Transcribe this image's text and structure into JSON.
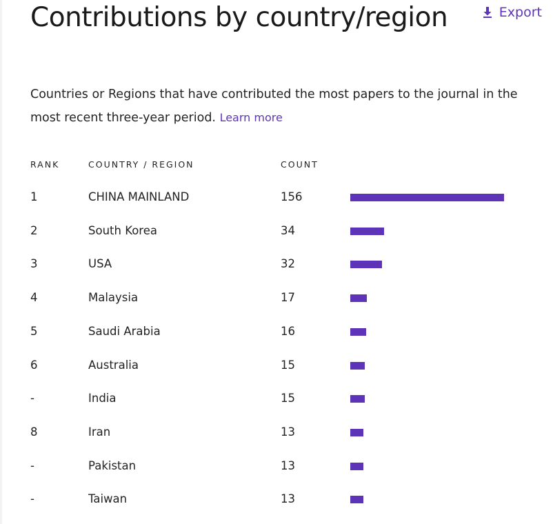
{
  "header": {
    "title": "Contributions by country/region",
    "export_label": "Export",
    "export_icon": "download-icon"
  },
  "description": {
    "text": "Countries or Regions that have contributed the most papers to the journal in the most recent three-year period.",
    "learn_more_label": "Learn more"
  },
  "table": {
    "columns": [
      "RANK",
      "COUNTRY / REGION",
      "COUNT"
    ]
  },
  "colors": {
    "accent": "#5d34b8",
    "text": "#222222"
  },
  "chart_data": {
    "type": "bar",
    "orientation": "horizontal",
    "categories": [
      "CHINA MAINLAND",
      "South Korea",
      "USA",
      "Malaysia",
      "Saudi Arabia",
      "Australia",
      "India",
      "Iran",
      "Pakistan",
      "Taiwan"
    ],
    "ranks": [
      "1",
      "2",
      "3",
      "4",
      "5",
      "6",
      "-",
      "8",
      "-",
      "-"
    ],
    "values": [
      156,
      34,
      32,
      17,
      16,
      15,
      15,
      13,
      13,
      13
    ],
    "grid": false
  }
}
